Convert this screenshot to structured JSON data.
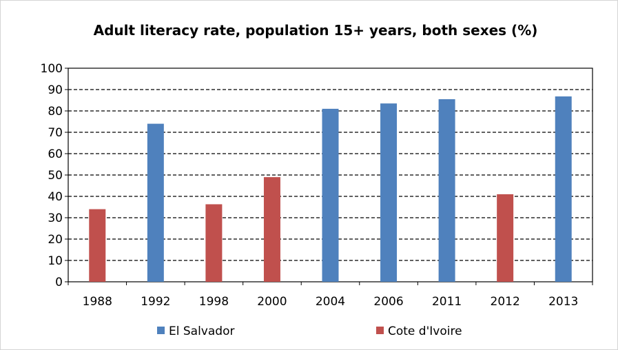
{
  "chart_data": {
    "type": "bar",
    "title": "Adult literacy rate, population 15+ years, both sexes (%)",
    "categories": [
      "1988",
      "1992",
      "1998",
      "2000",
      "2004",
      "2006",
      "2011",
      "2012",
      "2013"
    ],
    "series": [
      {
        "name": "El Salvador",
        "color": "#4f81bd",
        "values": [
          null,
          74,
          null,
          null,
          81,
          83.5,
          85.5,
          null,
          86.8
        ]
      },
      {
        "name": "Cote d'Ivoire",
        "color": "#c0504d",
        "values": [
          34,
          null,
          36.3,
          49,
          null,
          null,
          null,
          41,
          null
        ]
      }
    ],
    "ylim": [
      0,
      100
    ],
    "yticks": [
      0,
      10,
      20,
      30,
      40,
      50,
      60,
      70,
      80,
      90,
      100
    ],
    "grid": true,
    "grid_style": "dashed",
    "legend_position": "bottom"
  }
}
